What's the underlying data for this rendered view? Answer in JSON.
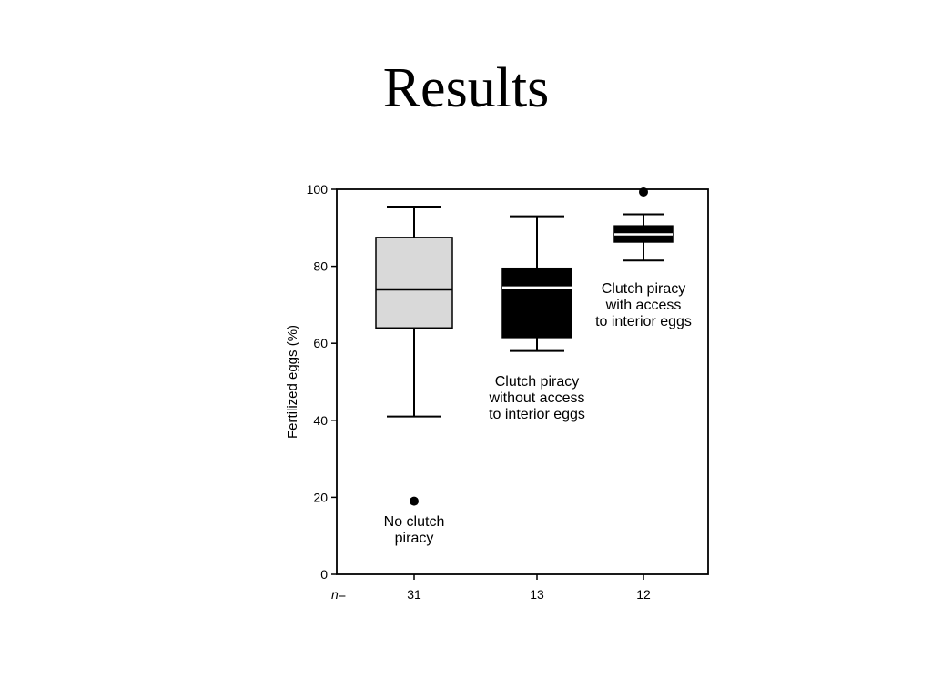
{
  "slide": {
    "title": "Results"
  },
  "chart_data": {
    "type": "boxplot",
    "ylabel": "Fertilized eggs (%)",
    "ylim": [
      0,
      100
    ],
    "yticks": [
      0,
      20,
      40,
      60,
      80,
      100
    ],
    "n_prefix": "n=",
    "groups": [
      {
        "n": "31",
        "label": [
          "No clutch",
          "piracy"
        ],
        "whisker_low": 41,
        "q1": 64,
        "median": 74,
        "q3": 87.5,
        "whisker_high": 95.5,
        "outliers": [
          19
        ],
        "fill": "#d9d9d9",
        "median_color": "#000000"
      },
      {
        "n": "13",
        "label": [
          "Clutch piracy",
          "without access",
          "to interior eggs"
        ],
        "whisker_low": 58,
        "q1": 61.5,
        "median": 74.5,
        "q3": 79.5,
        "whisker_high": 93,
        "outliers": [],
        "fill": "#000000",
        "median_color": "#ffffff"
      },
      {
        "n": "12",
        "label": [
          "Clutch piracy",
          "with access",
          "to interior eggs"
        ],
        "whisker_low": 81.5,
        "q1": 86.3,
        "median": 88.3,
        "q3": 90.5,
        "whisker_high": 93.5,
        "outliers": [
          99.3
        ],
        "fill": "#000000",
        "median_color": "#ffffff"
      }
    ]
  }
}
